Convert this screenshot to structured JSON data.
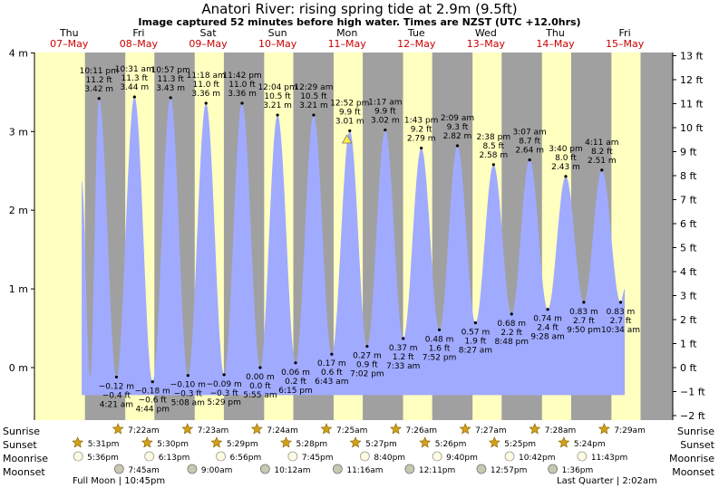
{
  "page": {
    "title": "Anatori River: rising  spring tide at 2.9m (9.5ft)",
    "subtitle": "Image captured 52 minutes before high water. Times are NZST (UTC +12.0hrs)"
  },
  "row_labels": {
    "sunrise": "Sunrise",
    "sunset": "Sunset",
    "moonrise": "Moonrise",
    "moonset": "Moonset"
  },
  "moon_phases": [
    {
      "label": "Full Moon | 10:45pm"
    },
    {
      "label": "Last Quarter | 2:02am"
    }
  ],
  "colors": {
    "day": "#ffffc0",
    "night": "#a0a0a0",
    "tide_fill": "#a0aaff",
    "day_label": "#cc0000",
    "sun_icon": "#d4a017",
    "moon_icon": "#c8c8b0"
  },
  "chart_data": {
    "type": "area",
    "days": [
      {
        "dow": "Thu",
        "date": "07–May"
      },
      {
        "dow": "Fri",
        "date": "08–May"
      },
      {
        "dow": "Sat",
        "date": "09–May"
      },
      {
        "dow": "Sun",
        "date": "10–May"
      },
      {
        "dow": "Mon",
        "date": "11–May"
      },
      {
        "dow": "Tue",
        "date": "12–May"
      },
      {
        "dow": "Wed",
        "date": "13–May"
      },
      {
        "dow": "Thu",
        "date": "14–May"
      },
      {
        "dow": "Fri",
        "date": "15–May"
      }
    ],
    "y_left": {
      "unit": "m",
      "ticks": [
        "4 m",
        "3 m",
        "2 m",
        "1 m",
        "0 m"
      ],
      "values": [
        4,
        3,
        2,
        1,
        0
      ],
      "range": [
        -0.6,
        4.0
      ]
    },
    "y_right": {
      "unit": "ft",
      "ticks": [
        "13 ft",
        "12 ft",
        "11 ft",
        "10 ft",
        "9 ft",
        "8 ft",
        "7 ft",
        "6 ft",
        "5 ft",
        "4 ft",
        "3 ft",
        "2 ft",
        "1 ft",
        "0 ft",
        "−1 ft",
        "−2 ft"
      ],
      "values": [
        13,
        12,
        11,
        10,
        9,
        8,
        7,
        6,
        5,
        4,
        3,
        2,
        1,
        0,
        -1,
        -2
      ]
    },
    "tides": [
      {
        "type": "high",
        "day": 0.93,
        "height": 3.42,
        "time": "10:11 pm",
        "ft": "11.2 ft",
        "m": "3.42 m"
      },
      {
        "type": "low",
        "day": 1.18,
        "height": -0.12,
        "time": "4:21 am",
        "ft": "−0.4 ft",
        "m": "−0.12 m"
      },
      {
        "type": "high",
        "day": 1.44,
        "height": 3.44,
        "time": "10:31 am",
        "ft": "11.3 ft",
        "m": "3.44 m"
      },
      {
        "type": "low",
        "day": 1.7,
        "height": -0.18,
        "time": "4:44 pm",
        "ft": "−0.6 ft",
        "m": "−0.18 m"
      },
      {
        "type": "high",
        "day": 1.96,
        "height": 3.43,
        "time": "10:57 pm",
        "ft": "11.3 ft",
        "m": "3.43 m"
      },
      {
        "type": "low",
        "day": 2.21,
        "height": -0.1,
        "time": "5:08 am",
        "ft": "−0.3 ft",
        "m": "−0.10 m"
      },
      {
        "type": "high",
        "day": 2.47,
        "height": 3.36,
        "time": "11:18 am",
        "ft": "11.0 ft",
        "m": "3.36 m"
      },
      {
        "type": "low",
        "day": 2.73,
        "height": -0.09,
        "time": "5:29 pm",
        "ft": "−0.3 ft",
        "m": "−0.09 m"
      },
      {
        "type": "high",
        "day": 2.99,
        "height": 3.36,
        "time": "11:42 pm",
        "ft": "11.0 ft",
        "m": "3.36 m"
      },
      {
        "type": "low",
        "day": 3.25,
        "height": 0.0,
        "time": "5:55 am",
        "ft": "0.0 ft",
        "m": "0.00 m"
      },
      {
        "type": "high",
        "day": 3.5,
        "height": 3.21,
        "time": "12:04 pm",
        "ft": "10.5 ft",
        "m": "3.21 m"
      },
      {
        "type": "low",
        "day": 3.76,
        "height": 0.06,
        "time": "6:15 pm",
        "ft": "0.2 ft",
        "m": "0.06 m"
      },
      {
        "type": "high",
        "day": 4.02,
        "height": 3.21,
        "time": "12:29 am",
        "ft": "10.5 ft",
        "m": "3.21 m"
      },
      {
        "type": "low",
        "day": 4.28,
        "height": 0.17,
        "time": "6:43 am",
        "ft": "0.6 ft",
        "m": "0.17 m"
      },
      {
        "type": "high",
        "day": 4.54,
        "height": 3.01,
        "time": "12:52 pm",
        "ft": "9.9 ft",
        "m": "3.01 m"
      },
      {
        "type": "low",
        "day": 4.79,
        "height": 0.27,
        "time": "7:02 pm",
        "ft": "0.9 ft",
        "m": "0.27 m"
      },
      {
        "type": "high",
        "day": 5.05,
        "height": 3.02,
        "time": "1:17 am",
        "ft": "9.9 ft",
        "m": "3.02 m"
      },
      {
        "type": "low",
        "day": 5.31,
        "height": 0.37,
        "time": "7:33 am",
        "ft": "1.2 ft",
        "m": "0.37 m"
      },
      {
        "type": "high",
        "day": 5.57,
        "height": 2.79,
        "time": "1:43 pm",
        "ft": "9.2 ft",
        "m": "2.79 m"
      },
      {
        "type": "low",
        "day": 5.83,
        "height": 0.48,
        "time": "7:52 pm",
        "ft": "1.6 ft",
        "m": "0.48 m"
      },
      {
        "type": "high",
        "day": 6.09,
        "height": 2.82,
        "time": "2:09 am",
        "ft": "9.3 ft",
        "m": "2.82 m"
      },
      {
        "type": "low",
        "day": 6.35,
        "height": 0.57,
        "time": "8:27 am",
        "ft": "1.9 ft",
        "m": "0.57 m"
      },
      {
        "type": "high",
        "day": 6.61,
        "height": 2.58,
        "time": "2:38 pm",
        "ft": "8.5 ft",
        "m": "2.58 m"
      },
      {
        "type": "low",
        "day": 6.87,
        "height": 0.68,
        "time": "8:48 pm",
        "ft": "2.2 ft",
        "m": "0.68 m"
      },
      {
        "type": "high",
        "day": 7.13,
        "height": 2.64,
        "time": "3:07 am",
        "ft": "8.7 ft",
        "m": "2.64 m"
      },
      {
        "type": "low",
        "day": 7.39,
        "height": 0.74,
        "time": "9:28 am",
        "ft": "2.4 ft",
        "m": "0.74 m"
      },
      {
        "type": "high",
        "day": 7.65,
        "height": 2.43,
        "time": "3:40 pm",
        "ft": "8.0 ft",
        "m": "2.43 m"
      },
      {
        "type": "low",
        "day": 7.91,
        "height": 0.83,
        "time": "9:50 pm",
        "ft": "2.7 ft",
        "m": "0.83 m"
      },
      {
        "type": "high",
        "day": 8.17,
        "height": 2.51,
        "time": "4:11 am",
        "ft": "8.2 ft",
        "m": "2.51 m"
      },
      {
        "type": "low",
        "day": 8.44,
        "height": 0.83,
        "time": "10:34 am",
        "ft": "2.7 ft",
        "m": "0.83 m"
      }
    ],
    "current": {
      "day": 4.5,
      "height": 2.9
    },
    "sunrise": [
      "7:22am",
      "7:23am",
      "7:24am",
      "7:25am",
      "7:26am",
      "7:27am",
      "7:28am",
      "7:29am"
    ],
    "sunset": [
      "5:31pm",
      "5:30pm",
      "5:29pm",
      "5:28pm",
      "5:27pm",
      "5:26pm",
      "5:25pm",
      "5:24pm"
    ],
    "moonrise": [
      "5:36pm",
      "6:13pm",
      "6:56pm",
      "7:45pm",
      "8:40pm",
      "9:40pm",
      "10:42pm",
      "11:43pm"
    ],
    "moonset": [
      "7:45am",
      "9:00am",
      "10:12am",
      "11:16am",
      "12:11pm",
      "12:57pm",
      "1:36pm"
    ]
  }
}
